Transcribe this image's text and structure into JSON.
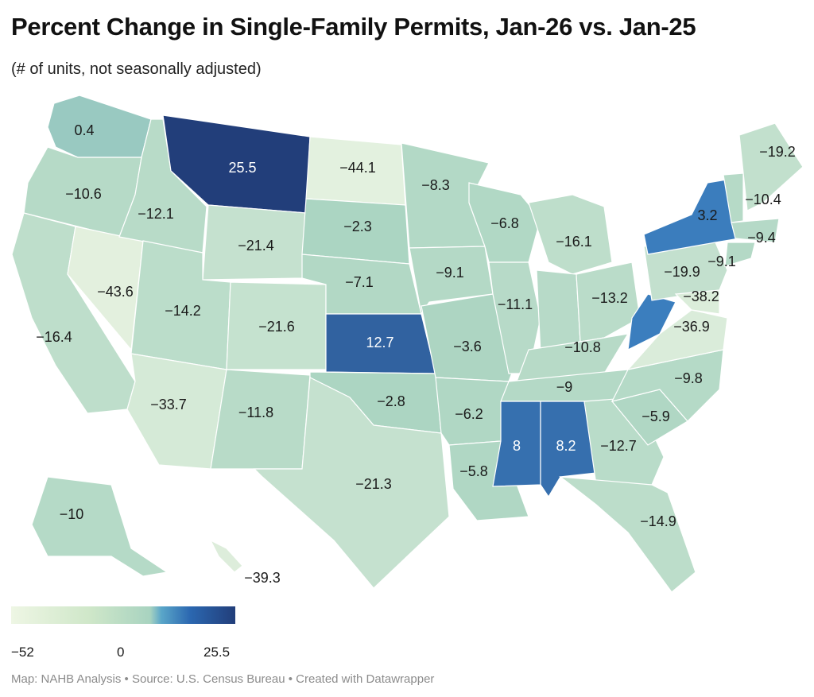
{
  "title": "Percent Change in Single-Family Permits, Jan-26 vs. Jan-25",
  "subtitle": "(# of units, not seasonally adjusted)",
  "footer": "Map: NAHB Analysis • Source: U.S. Census Bureau • Created with Datawrapper",
  "legend": {
    "min": "−52",
    "mid": "0",
    "max": "25.5"
  },
  "colors": {
    "low": "#eef6e4",
    "neutral": "#a8d3c0",
    "high": "#223e7a"
  },
  "chart_data": {
    "type": "choropleth",
    "scale": {
      "min": -52,
      "mid": 0,
      "max": 25.5
    },
    "states": [
      {
        "id": "WA",
        "value": 0.4,
        "label": "0.4"
      },
      {
        "id": "OR",
        "value": -10.6,
        "label": "−10.6"
      },
      {
        "id": "CA",
        "value": -16.4,
        "label": "−16.4"
      },
      {
        "id": "NV",
        "value": -43.6,
        "label": "−43.6"
      },
      {
        "id": "ID",
        "value": -12.1,
        "label": "−12.1"
      },
      {
        "id": "MT",
        "value": 25.5,
        "label": "25.5"
      },
      {
        "id": "WY",
        "value": -21.4,
        "label": "−21.4"
      },
      {
        "id": "UT",
        "value": -14.2,
        "label": "−14.2"
      },
      {
        "id": "AZ",
        "value": -33.7,
        "label": "−33.7"
      },
      {
        "id": "CO",
        "value": -21.6,
        "label": "−21.6"
      },
      {
        "id": "NM",
        "value": -11.8,
        "label": "−11.8"
      },
      {
        "id": "ND",
        "value": -44.1,
        "label": "−44.1"
      },
      {
        "id": "SD",
        "value": -2.3,
        "label": "−2.3"
      },
      {
        "id": "NE",
        "value": -7.1,
        "label": "−7.1"
      },
      {
        "id": "KS",
        "value": 12.7,
        "label": "12.7"
      },
      {
        "id": "OK",
        "value": -2.8,
        "label": "−2.8"
      },
      {
        "id": "TX",
        "value": -21.3,
        "label": "−21.3"
      },
      {
        "id": "MN",
        "value": -8.3,
        "label": "−8.3"
      },
      {
        "id": "IA",
        "value": -9.1,
        "label": "−9.1"
      },
      {
        "id": "MO",
        "value": -3.6,
        "label": "−3.6"
      },
      {
        "id": "AR",
        "value": -6.2,
        "label": "−6.2"
      },
      {
        "id": "LA",
        "value": -5.8,
        "label": "−5.8"
      },
      {
        "id": "WI",
        "value": -6.8,
        "label": "−6.8"
      },
      {
        "id": "IL",
        "value": -11.1,
        "label": "−11.1"
      },
      {
        "id": "MI",
        "value": -16.1,
        "label": "−16.1"
      },
      {
        "id": "IN",
        "value": -11.0,
        "label": ""
      },
      {
        "id": "OH",
        "value": -13.2,
        "label": "−13.2"
      },
      {
        "id": "KY",
        "value": -10.8,
        "label": "−10.8"
      },
      {
        "id": "TN",
        "value": -9,
        "label": "−9"
      },
      {
        "id": "MS",
        "value": 8,
        "label": "8"
      },
      {
        "id": "AL",
        "value": 8.2,
        "label": "8.2"
      },
      {
        "id": "GA",
        "value": -12.7,
        "label": "−12.7"
      },
      {
        "id": "FL",
        "value": -14.9,
        "label": "−14.9"
      },
      {
        "id": "SC",
        "value": -5.9,
        "label": "−5.9"
      },
      {
        "id": "NC",
        "value": -9.8,
        "label": "−9.8"
      },
      {
        "id": "VA",
        "value": -36.9,
        "label": "−36.9"
      },
      {
        "id": "WV",
        "value": 3.0,
        "label": ""
      },
      {
        "id": "PA",
        "value": -19.9,
        "label": "−19.9"
      },
      {
        "id": "NY",
        "value": 3.2,
        "label": "3.2"
      },
      {
        "id": "VT",
        "value": -10.4,
        "label": "−10.4"
      },
      {
        "id": "ME",
        "value": -19.2,
        "label": "−19.2"
      },
      {
        "id": "MA",
        "value": -9.4,
        "label": "−9.4"
      },
      {
        "id": "CT",
        "value": -9.1,
        "label": "−9.1"
      },
      {
        "id": "MD",
        "value": -38.2,
        "label": "−38.2"
      },
      {
        "id": "AK",
        "value": -10,
        "label": "−10"
      },
      {
        "id": "HI",
        "value": -39.3,
        "label": "−39.3"
      }
    ]
  }
}
